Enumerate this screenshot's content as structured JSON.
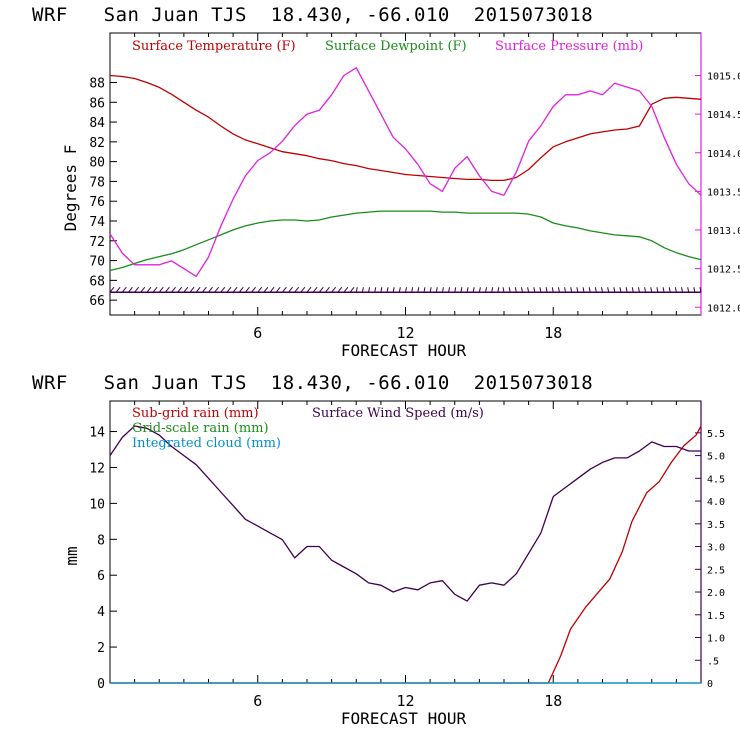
{
  "chart_data": [
    {
      "type": "line",
      "title": "WRF   San Juan TJS  18.430, -66.010  2015073018",
      "xlabel": "FORECAST HOUR",
      "ylabel": "Degrees F",
      "xlim": [
        0,
        24
      ],
      "ylim": [
        64.5,
        93
      ],
      "y2lim": [
        1011.9,
        1015.55
      ],
      "x_ticks": [
        6,
        12,
        18
      ],
      "y_ticks": [
        66,
        68,
        70,
        72,
        74,
        76,
        78,
        80,
        82,
        84,
        86,
        88
      ],
      "y2_ticks": [
        1012.0,
        1012.5,
        1013.0,
        1013.5,
        1014.0,
        1014.5,
        1015.0
      ],
      "x_tick_labels": [
        "6",
        "12",
        "18"
      ],
      "y_tick_labels": [
        "66",
        "68",
        "70",
        "72",
        "74",
        "76",
        "78",
        "80",
        "82",
        "84",
        "86",
        "88"
      ],
      "y2_tick_labels": [
        "1012.0",
        "1012.5",
        "1013.0",
        "1013.5",
        "1014.0",
        "1014.5",
        "1015.0"
      ],
      "series": [
        {
          "name": "Surface Temperature (F)",
          "color": "#c00000",
          "axis": "left",
          "x": [
            0,
            0.5,
            1,
            1.5,
            2,
            2.5,
            3,
            3.5,
            4,
            4.5,
            5,
            5.5,
            6,
            6.5,
            7,
            7.5,
            8,
            8.5,
            9,
            9.5,
            10,
            10.5,
            11,
            11.5,
            12,
            12.5,
            13,
            13.5,
            14,
            14.5,
            15,
            15.5,
            16,
            16.5,
            17,
            17.5,
            18,
            18.5,
            19,
            19.5,
            20,
            20.5,
            21,
            21.5,
            22,
            22.5,
            23,
            23.5,
            24
          ],
          "y": [
            88.7,
            88.6,
            88.4,
            88.0,
            87.5,
            86.8,
            86.0,
            85.2,
            84.5,
            83.6,
            82.8,
            82.2,
            81.8,
            81.4,
            81.0,
            80.8,
            80.6,
            80.3,
            80.1,
            79.8,
            79.6,
            79.3,
            79.1,
            78.9,
            78.7,
            78.6,
            78.5,
            78.4,
            78.3,
            78.2,
            78.2,
            78.1,
            78.1,
            78.4,
            79.2,
            80.4,
            81.5,
            82.0,
            82.4,
            82.8,
            83.0,
            83.2,
            83.3,
            83.6,
            85.8,
            86.4,
            86.5,
            86.4,
            86.3
          ]
        },
        {
          "name": "Surface Dewpoint (F)",
          "color": "#1a8c1a",
          "axis": "left",
          "x": [
            0,
            0.5,
            1,
            1.5,
            2,
            2.5,
            3,
            3.5,
            4,
            4.5,
            5,
            5.5,
            6,
            6.5,
            7,
            7.5,
            8,
            8.5,
            9,
            9.5,
            10,
            10.5,
            11,
            11.5,
            12,
            12.5,
            13,
            13.5,
            14,
            14.5,
            15,
            15.5,
            16,
            16.5,
            17,
            17.5,
            18,
            18.5,
            19,
            19.5,
            20,
            20.5,
            21,
            21.5,
            22,
            22.5,
            23,
            23.5,
            24
          ],
          "y": [
            69.0,
            69.3,
            69.7,
            70.1,
            70.4,
            70.7,
            71.1,
            71.6,
            72.1,
            72.6,
            73.1,
            73.5,
            73.8,
            74.0,
            74.1,
            74.1,
            74.0,
            74.1,
            74.4,
            74.6,
            74.8,
            74.9,
            75.0,
            75.0,
            75.0,
            75.0,
            75.0,
            74.9,
            74.9,
            74.8,
            74.8,
            74.8,
            74.8,
            74.8,
            74.7,
            74.4,
            73.8,
            73.5,
            73.3,
            73.0,
            72.8,
            72.6,
            72.5,
            72.4,
            72.0,
            71.3,
            70.8,
            70.4,
            70.1
          ]
        },
        {
          "name": "Surface Pressure (mb)",
          "color": "#e020e0",
          "axis": "right",
          "x": [
            0,
            0.5,
            1,
            1.5,
            2,
            2.5,
            3,
            3.5,
            4,
            4.5,
            5,
            5.5,
            6,
            6.5,
            7,
            7.5,
            8,
            8.5,
            9,
            9.5,
            10,
            10.5,
            11,
            11.5,
            12,
            12.5,
            13,
            13.5,
            14,
            14.5,
            15,
            15.5,
            16,
            16.5,
            17,
            17.5,
            18,
            18.5,
            19,
            19.5,
            20,
            20.5,
            21,
            21.5,
            22,
            22.5,
            23,
            23.5,
            24
          ],
          "y": [
            1012.95,
            1012.7,
            1012.55,
            1012.55,
            1012.55,
            1012.6,
            1012.5,
            1012.4,
            1012.65,
            1013.05,
            1013.4,
            1013.7,
            1013.9,
            1014.0,
            1014.15,
            1014.35,
            1014.5,
            1014.55,
            1014.75,
            1015.0,
            1015.1,
            1014.8,
            1014.5,
            1014.2,
            1014.05,
            1013.85,
            1013.6,
            1013.5,
            1013.8,
            1013.95,
            1013.7,
            1013.5,
            1013.45,
            1013.75,
            1014.15,
            1014.35,
            1014.6,
            1014.75,
            1014.75,
            1014.8,
            1014.75,
            1014.9,
            1014.85,
            1014.8,
            1014.6,
            1014.2,
            1013.85,
            1013.6,
            1013.45
          ]
        },
        {
          "name": "Surface Wind",
          "color": "#400050",
          "axis": "left",
          "style": "wind-barbs",
          "x": [
            0,
            24
          ],
          "y": [
            66.8,
            66.8
          ]
        }
      ]
    },
    {
      "type": "line",
      "title": "WRF   San Juan TJS  18.430, -66.010  2015073018",
      "xlabel": "FORECAST HOUR",
      "ylabel": "mm",
      "xlim": [
        0,
        24
      ],
      "ylim": [
        0,
        15.7
      ],
      "y2lim": [
        0,
        6.2
      ],
      "x_ticks": [
        6,
        12,
        18
      ],
      "y_ticks": [
        0,
        2,
        4,
        6,
        8,
        10,
        12,
        14
      ],
      "y2_ticks": [
        0,
        0.5,
        1.0,
        1.5,
        2.0,
        2.5,
        3.0,
        3.5,
        4.0,
        4.5,
        5.0,
        5.5
      ],
      "x_tick_labels": [
        "6",
        "12",
        "18"
      ],
      "y_tick_labels": [
        "0",
        "2",
        "4",
        "6",
        "8",
        "10",
        "12",
        "14"
      ],
      "y2_tick_labels": [
        "0",
        ".5",
        "1.0",
        "1.5",
        "2.0",
        "2.5",
        "3.0",
        "3.5",
        "4.0",
        "4.5",
        "5.0",
        "5.5"
      ],
      "series": [
        {
          "name": "Sub-grid rain (mm)",
          "color": "#c00000",
          "axis": "left",
          "x": [
            0,
            17.8,
            18.3,
            18.7,
            19.3,
            19.8,
            20.3,
            20.8,
            21.2,
            21.8,
            22.3,
            22.8,
            23.3,
            23.8,
            24
          ],
          "y": [
            0,
            0,
            1.5,
            3.0,
            4.2,
            5.0,
            5.8,
            7.3,
            9.0,
            10.6,
            11.2,
            12.3,
            13.2,
            13.8,
            14.3
          ]
        },
        {
          "name": "Grid-scale rain (mm)",
          "color": "#1a8c1a",
          "axis": "left",
          "x": [
            0,
            24
          ],
          "y": [
            0,
            0
          ]
        },
        {
          "name": "Integrated cloud (mm)",
          "color": "#0090d0",
          "axis": "left",
          "x": [
            0,
            24
          ],
          "y": [
            0,
            0
          ]
        },
        {
          "name": "Surface Wind Speed (m/s)",
          "color": "#400050",
          "axis": "right",
          "x": [
            0,
            0.5,
            1,
            1.5,
            2,
            2.5,
            3,
            3.5,
            4,
            4.5,
            5,
            5.5,
            6,
            6.5,
            7,
            7.5,
            8,
            8.5,
            9,
            9.5,
            10,
            10.5,
            11,
            11.5,
            12,
            12.5,
            13,
            13.5,
            14,
            14.5,
            15,
            15.5,
            16,
            16.5,
            17,
            17.5,
            18,
            18.5,
            19,
            19.5,
            20,
            20.5,
            21,
            21.5,
            22,
            22.5,
            23,
            23.5,
            24
          ],
          "y": [
            5.0,
            5.4,
            5.65,
            5.6,
            5.45,
            5.2,
            5.0,
            4.8,
            4.5,
            4.2,
            3.9,
            3.6,
            3.45,
            3.3,
            3.15,
            2.75,
            3.0,
            3.0,
            2.7,
            2.55,
            2.4,
            2.2,
            2.15,
            2.0,
            2.1,
            2.05,
            2.2,
            2.25,
            1.95,
            1.8,
            2.15,
            2.2,
            2.15,
            2.4,
            2.85,
            3.3,
            4.1,
            4.3,
            4.5,
            4.7,
            4.85,
            4.95,
            4.95,
            5.1,
            5.3,
            5.2,
            5.2,
            5.1,
            5.1
          ]
        }
      ]
    }
  ]
}
